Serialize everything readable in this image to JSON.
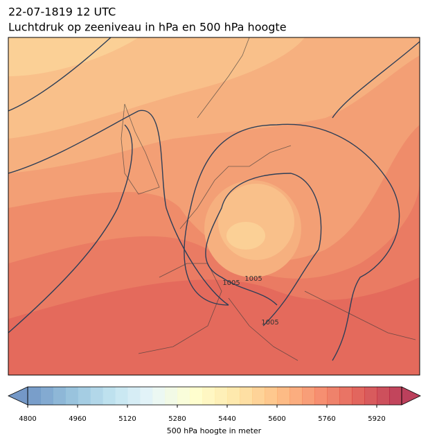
{
  "title": "22-07-1819 12 UTC",
  "subtitle": "Luchtdruk op zeeniveau in hPa en 500 hPa hoogte",
  "contour_labels": [
    "1005",
    "1005",
    "1005"
  ],
  "colorbar": {
    "label": "500 hPa hoogte in meter",
    "lim": [
      4800,
      6000
    ],
    "step": 40,
    "ticks": [
      4800,
      4960,
      5120,
      5280,
      5440,
      5600,
      5760,
      5920
    ],
    "extend": "both"
  }
}
